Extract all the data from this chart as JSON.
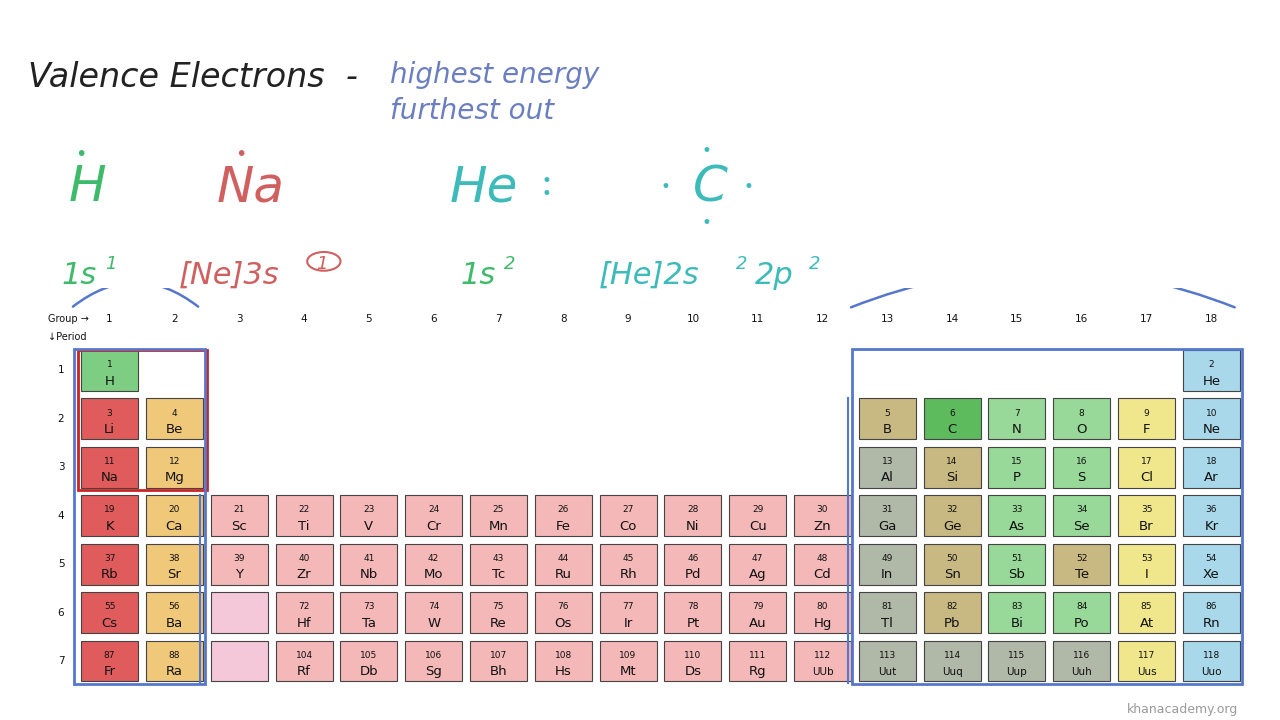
{
  "background_color": "#ffffff",
  "elements": [
    {
      "num": 1,
      "sym": "H",
      "period": 1,
      "group": 1,
      "color": "#7dce82"
    },
    {
      "num": 2,
      "sym": "He",
      "period": 1,
      "group": 18,
      "color": "#a8d8ea"
    },
    {
      "num": 3,
      "sym": "Li",
      "period": 2,
      "group": 1,
      "color": "#e05c5c"
    },
    {
      "num": 4,
      "sym": "Be",
      "period": 2,
      "group": 2,
      "color": "#f0c87a"
    },
    {
      "num": 5,
      "sym": "B",
      "period": 2,
      "group": 13,
      "color": "#c8b882"
    },
    {
      "num": 6,
      "sym": "C",
      "period": 2,
      "group": 14,
      "color": "#5dba5d"
    },
    {
      "num": 7,
      "sym": "N",
      "period": 2,
      "group": 15,
      "color": "#98d898"
    },
    {
      "num": 8,
      "sym": "O",
      "period": 2,
      "group": 16,
      "color": "#98d898"
    },
    {
      "num": 9,
      "sym": "F",
      "period": 2,
      "group": 17,
      "color": "#f0e68c"
    },
    {
      "num": 10,
      "sym": "Ne",
      "period": 2,
      "group": 18,
      "color": "#a8d8ea"
    },
    {
      "num": 11,
      "sym": "Na",
      "period": 3,
      "group": 1,
      "color": "#e05c5c"
    },
    {
      "num": 12,
      "sym": "Mg",
      "period": 3,
      "group": 2,
      "color": "#f0c87a"
    },
    {
      "num": 13,
      "sym": "Al",
      "period": 3,
      "group": 13,
      "color": "#b0b8a8"
    },
    {
      "num": 14,
      "sym": "Si",
      "period": 3,
      "group": 14,
      "color": "#c8b882"
    },
    {
      "num": 15,
      "sym": "P",
      "period": 3,
      "group": 15,
      "color": "#98d898"
    },
    {
      "num": 16,
      "sym": "S",
      "period": 3,
      "group": 16,
      "color": "#98d898"
    },
    {
      "num": 17,
      "sym": "Cl",
      "period": 3,
      "group": 17,
      "color": "#f0e68c"
    },
    {
      "num": 18,
      "sym": "Ar",
      "period": 3,
      "group": 18,
      "color": "#a8d8ea"
    },
    {
      "num": 19,
      "sym": "K",
      "period": 4,
      "group": 1,
      "color": "#e05c5c"
    },
    {
      "num": 20,
      "sym": "Ca",
      "period": 4,
      "group": 2,
      "color": "#f0c87a"
    },
    {
      "num": 21,
      "sym": "Sc",
      "period": 4,
      "group": 3,
      "color": "#f4b8b8"
    },
    {
      "num": 22,
      "sym": "Ti",
      "period": 4,
      "group": 4,
      "color": "#f4b8b8"
    },
    {
      "num": 23,
      "sym": "V",
      "period": 4,
      "group": 5,
      "color": "#f4b8b8"
    },
    {
      "num": 24,
      "sym": "Cr",
      "period": 4,
      "group": 6,
      "color": "#f4b8b8"
    },
    {
      "num": 25,
      "sym": "Mn",
      "period": 4,
      "group": 7,
      "color": "#f4b8b8"
    },
    {
      "num": 26,
      "sym": "Fe",
      "period": 4,
      "group": 8,
      "color": "#f4b8b8"
    },
    {
      "num": 27,
      "sym": "Co",
      "period": 4,
      "group": 9,
      "color": "#f4b8b8"
    },
    {
      "num": 28,
      "sym": "Ni",
      "period": 4,
      "group": 10,
      "color": "#f4b8b8"
    },
    {
      "num": 29,
      "sym": "Cu",
      "period": 4,
      "group": 11,
      "color": "#f4b8b8"
    },
    {
      "num": 30,
      "sym": "Zn",
      "period": 4,
      "group": 12,
      "color": "#f4b8b8"
    },
    {
      "num": 31,
      "sym": "Ga",
      "period": 4,
      "group": 13,
      "color": "#b0b8a8"
    },
    {
      "num": 32,
      "sym": "Ge",
      "period": 4,
      "group": 14,
      "color": "#c8b882"
    },
    {
      "num": 33,
      "sym": "As",
      "period": 4,
      "group": 15,
      "color": "#98d898"
    },
    {
      "num": 34,
      "sym": "Se",
      "period": 4,
      "group": 16,
      "color": "#98d898"
    },
    {
      "num": 35,
      "sym": "Br",
      "period": 4,
      "group": 17,
      "color": "#f0e68c"
    },
    {
      "num": 36,
      "sym": "Kr",
      "period": 4,
      "group": 18,
      "color": "#a8d8ea"
    },
    {
      "num": 37,
      "sym": "Rb",
      "period": 5,
      "group": 1,
      "color": "#e05c5c"
    },
    {
      "num": 38,
      "sym": "Sr",
      "period": 5,
      "group": 2,
      "color": "#f0c87a"
    },
    {
      "num": 39,
      "sym": "Y",
      "period": 5,
      "group": 3,
      "color": "#f4b8b8"
    },
    {
      "num": 40,
      "sym": "Zr",
      "period": 5,
      "group": 4,
      "color": "#f4b8b8"
    },
    {
      "num": 41,
      "sym": "Nb",
      "period": 5,
      "group": 5,
      "color": "#f4b8b8"
    },
    {
      "num": 42,
      "sym": "Mo",
      "period": 5,
      "group": 6,
      "color": "#f4b8b8"
    },
    {
      "num": 43,
      "sym": "Tc",
      "period": 5,
      "group": 7,
      "color": "#f4b8b8"
    },
    {
      "num": 44,
      "sym": "Ru",
      "period": 5,
      "group": 8,
      "color": "#f4b8b8"
    },
    {
      "num": 45,
      "sym": "Rh",
      "period": 5,
      "group": 9,
      "color": "#f4b8b8"
    },
    {
      "num": 46,
      "sym": "Pd",
      "period": 5,
      "group": 10,
      "color": "#f4b8b8"
    },
    {
      "num": 47,
      "sym": "Ag",
      "period": 5,
      "group": 11,
      "color": "#f4b8b8"
    },
    {
      "num": 48,
      "sym": "Cd",
      "period": 5,
      "group": 12,
      "color": "#f4b8b8"
    },
    {
      "num": 49,
      "sym": "In",
      "period": 5,
      "group": 13,
      "color": "#b0b8a8"
    },
    {
      "num": 50,
      "sym": "Sn",
      "period": 5,
      "group": 14,
      "color": "#c8b882"
    },
    {
      "num": 51,
      "sym": "Sb",
      "period": 5,
      "group": 15,
      "color": "#98d898"
    },
    {
      "num": 52,
      "sym": "Te",
      "period": 5,
      "group": 16,
      "color": "#c8b882"
    },
    {
      "num": 53,
      "sym": "I",
      "period": 5,
      "group": 17,
      "color": "#f0e68c"
    },
    {
      "num": 54,
      "sym": "Xe",
      "period": 5,
      "group": 18,
      "color": "#a8d8ea"
    },
    {
      "num": 55,
      "sym": "Cs",
      "period": 6,
      "group": 1,
      "color": "#e05c5c"
    },
    {
      "num": 56,
      "sym": "Ba",
      "period": 6,
      "group": 2,
      "color": "#f0c87a"
    },
    {
      "num": 72,
      "sym": "Hf",
      "period": 6,
      "group": 4,
      "color": "#f4b8b8"
    },
    {
      "num": 73,
      "sym": "Ta",
      "period": 6,
      "group": 5,
      "color": "#f4b8b8"
    },
    {
      "num": 74,
      "sym": "W",
      "period": 6,
      "group": 6,
      "color": "#f4b8b8"
    },
    {
      "num": 75,
      "sym": "Re",
      "period": 6,
      "group": 7,
      "color": "#f4b8b8"
    },
    {
      "num": 76,
      "sym": "Os",
      "period": 6,
      "group": 8,
      "color": "#f4b8b8"
    },
    {
      "num": 77,
      "sym": "Ir",
      "period": 6,
      "group": 9,
      "color": "#f4b8b8"
    },
    {
      "num": 78,
      "sym": "Pt",
      "period": 6,
      "group": 10,
      "color": "#f4b8b8"
    },
    {
      "num": 79,
      "sym": "Au",
      "period": 6,
      "group": 11,
      "color": "#f4b8b8"
    },
    {
      "num": 80,
      "sym": "Hg",
      "period": 6,
      "group": 12,
      "color": "#f4b8b8"
    },
    {
      "num": 81,
      "sym": "Tl",
      "period": 6,
      "group": 13,
      "color": "#b0b8a8"
    },
    {
      "num": 82,
      "sym": "Pb",
      "period": 6,
      "group": 14,
      "color": "#c8b882"
    },
    {
      "num": 83,
      "sym": "Bi",
      "period": 6,
      "group": 15,
      "color": "#98d898"
    },
    {
      "num": 84,
      "sym": "Po",
      "period": 6,
      "group": 16,
      "color": "#98d898"
    },
    {
      "num": 85,
      "sym": "At",
      "period": 6,
      "group": 17,
      "color": "#f0e68c"
    },
    {
      "num": 86,
      "sym": "Rn",
      "period": 6,
      "group": 18,
      "color": "#a8d8ea"
    },
    {
      "num": 87,
      "sym": "Fr",
      "period": 7,
      "group": 1,
      "color": "#e05c5c"
    },
    {
      "num": 88,
      "sym": "Ra",
      "period": 7,
      "group": 2,
      "color": "#f0c87a"
    },
    {
      "num": 104,
      "sym": "Rf",
      "period": 7,
      "group": 4,
      "color": "#f4b8b8"
    },
    {
      "num": 105,
      "sym": "Db",
      "period": 7,
      "group": 5,
      "color": "#f4b8b8"
    },
    {
      "num": 106,
      "sym": "Sg",
      "period": 7,
      "group": 6,
      "color": "#f4b8b8"
    },
    {
      "num": 107,
      "sym": "Bh",
      "period": 7,
      "group": 7,
      "color": "#f4b8b8"
    },
    {
      "num": 108,
      "sym": "Hs",
      "period": 7,
      "group": 8,
      "color": "#f4b8b8"
    },
    {
      "num": 109,
      "sym": "Mt",
      "period": 7,
      "group": 9,
      "color": "#f4b8b8"
    },
    {
      "num": 110,
      "sym": "Ds",
      "period": 7,
      "group": 10,
      "color": "#f4b8b8"
    },
    {
      "num": 111,
      "sym": "Rg",
      "period": 7,
      "group": 11,
      "color": "#f4b8b8"
    },
    {
      "num": 112,
      "sym": "UUb",
      "period": 7,
      "group": 12,
      "color": "#f4b8b8"
    },
    {
      "num": 113,
      "sym": "Uut",
      "period": 7,
      "group": 13,
      "color": "#b0b8a8"
    },
    {
      "num": 114,
      "sym": "Uuq",
      "period": 7,
      "group": 14,
      "color": "#b0b8a8"
    },
    {
      "num": 115,
      "sym": "Uup",
      "period": 7,
      "group": 15,
      "color": "#b0b8a8"
    },
    {
      "num": 116,
      "sym": "Uuh",
      "period": 7,
      "group": 16,
      "color": "#b0b8a8"
    },
    {
      "num": 117,
      "sym": "Uus",
      "period": 7,
      "group": 17,
      "color": "#f0e68c"
    },
    {
      "num": 118,
      "sym": "Uuo",
      "period": 7,
      "group": 18,
      "color": "#a8d8ea"
    }
  ],
  "lanthanide_placeholder": {
    "period": 6,
    "group": 3,
    "color": "#f4c8d8"
  },
  "actinide_placeholder": {
    "period": 7,
    "group": 3,
    "color": "#f4c8d8"
  },
  "group_labels": [
    1,
    2,
    3,
    4,
    5,
    6,
    7,
    8,
    9,
    10,
    11,
    12,
    13,
    14,
    15,
    16,
    17,
    18
  ],
  "period_labels": [
    1,
    2,
    3,
    4,
    5,
    6,
    7
  ],
  "title_black": "Valence Electrons  -",
  "title_blue1": "highest energy",
  "title_blue2": "furthest out",
  "title_black_color": "#222222",
  "title_blue_color": "#6b7fc0",
  "h_color": "#3dba6a",
  "na_color": "#d06060",
  "he_c_color": "#3dbaba",
  "conf_green_color": "#3dba6a",
  "conf_na_color": "#d06060",
  "conf_he_color": "#3dbaba",
  "watermark": "khanacademy.org",
  "watermark_color": "#999999"
}
